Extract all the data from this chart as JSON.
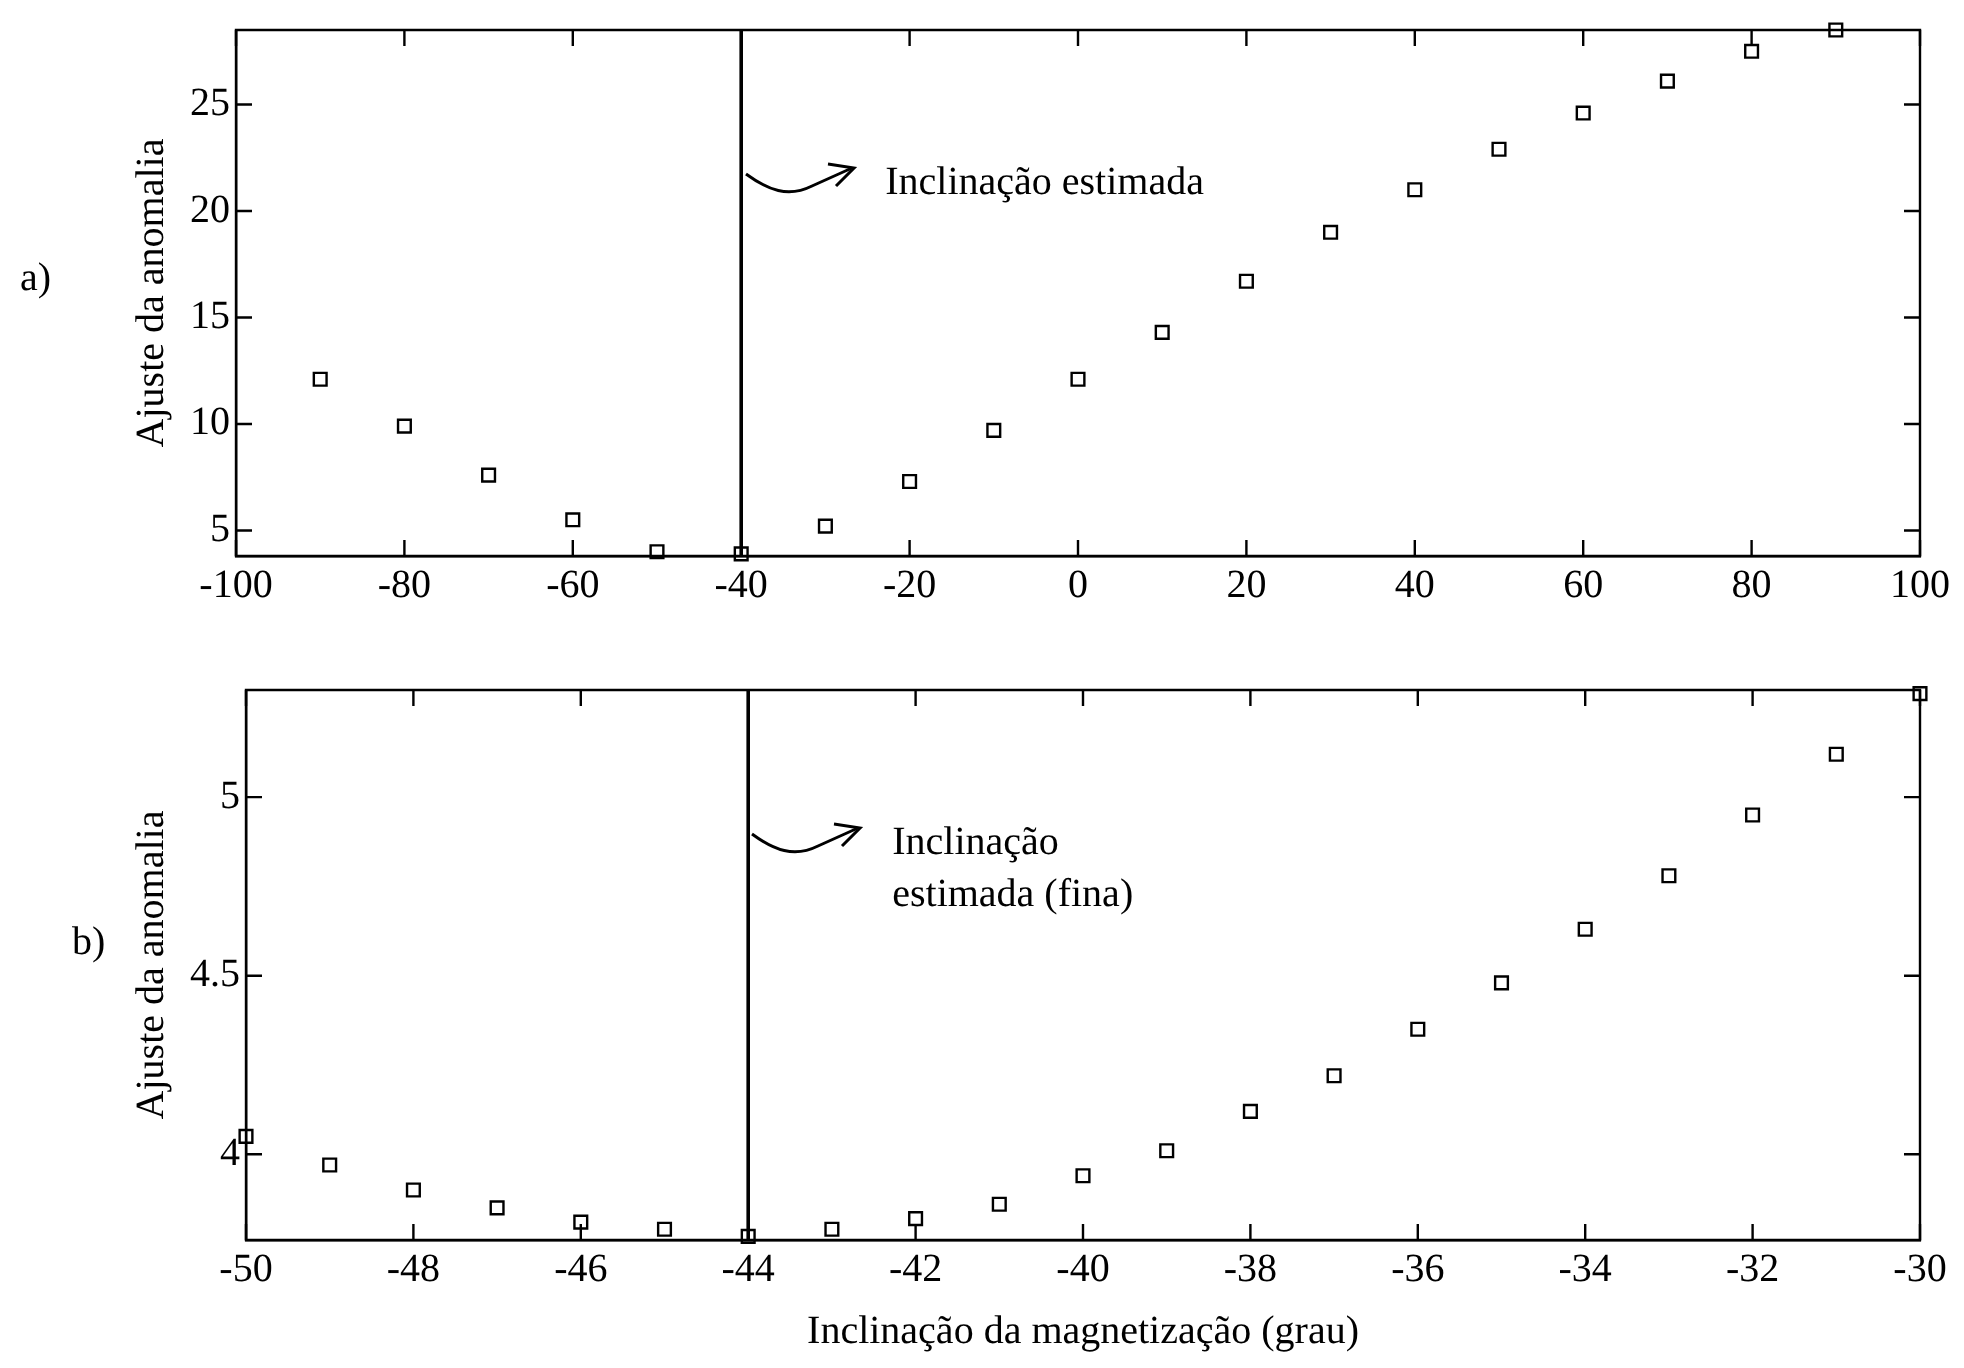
{
  "chart_data": [
    {
      "type": "scatter",
      "ylabel": "Ajuste da anomalia",
      "annotations": [
        "a)"
      ],
      "x": [
        -90,
        -80,
        -70,
        -60,
        -50,
        -40,
        -30,
        -20,
        -10,
        0,
        10,
        20,
        30,
        40,
        50,
        60,
        70,
        80,
        90
      ],
      "series": [
        {
          "color": "#000000",
          "values": [
            12.1,
            9.9,
            7.6,
            5.5,
            4.0,
            3.9,
            5.2,
            7.3,
            9.7,
            12.1,
            14.3,
            16.7,
            19.0,
            21.0,
            22.9,
            24.6,
            26.1,
            27.5,
            28.5
          ]
        }
      ],
      "marker": "square",
      "legend": false,
      "grid": false,
      "xlim": [
        -100,
        100
      ],
      "xticks": [
        -100,
        -80,
        -60,
        -40,
        -20,
        0,
        20,
        40,
        60,
        80,
        100
      ],
      "ylim": [
        3.8,
        28.5
      ],
      "yticks": [
        5,
        10,
        15,
        20,
        25
      ],
      "ref_lines": [
        {
          "axis": "x",
          "value": -40,
          "label": "Inclinação estimada",
          "color": "#000000"
        }
      ]
    },
    {
      "type": "scatter",
      "xlabel": "Inclinação da magnetização (grau)",
      "ylabel": "Ajuste da anomalia",
      "annotations": [
        "b)"
      ],
      "x": [
        -50,
        -49,
        -48,
        -47,
        -46,
        -45,
        -44,
        -43,
        -42,
        -41,
        -40,
        -39,
        -38,
        -37,
        -36,
        -35,
        -34,
        -33,
        -32,
        -31,
        -30
      ],
      "series": [
        {
          "color": "#000000",
          "values": [
            4.05,
            3.97,
            3.9,
            3.85,
            3.81,
            3.79,
            3.77,
            3.79,
            3.82,
            3.86,
            3.94,
            4.01,
            4.12,
            4.22,
            4.35,
            4.48,
            4.63,
            4.78,
            4.95,
            5.12,
            5.29
          ]
        }
      ],
      "marker": "square",
      "legend": false,
      "grid": false,
      "xlim": [
        -50,
        -30
      ],
      "xticks": [
        -50,
        -48,
        -46,
        -44,
        -42,
        -40,
        -38,
        -36,
        -34,
        -32,
        -30
      ],
      "ylim": [
        3.76,
        5.3
      ],
      "yticks": [
        4,
        4.5,
        5
      ],
      "ref_lines": [
        {
          "axis": "x",
          "value": -44,
          "label": "Inclinação estimada (fina)",
          "color": "#000000"
        }
      ]
    }
  ]
}
